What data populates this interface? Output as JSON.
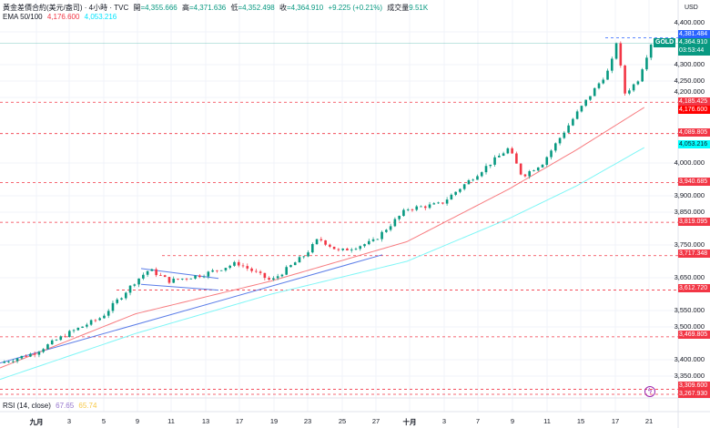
{
  "header": {
    "title": "黃金差價合約(美元/盎司) · 4小時 · TVC",
    "open_label": "開",
    "open": "=4,355.666",
    "high_label": "高",
    "high": "=4,371.636",
    "low_label": "低",
    "low": "=4,352.498",
    "close_label": "收",
    "close": "=4,364.910",
    "change": "+9.225 (+0.21%)",
    "volume_label": "成交量",
    "volume": "9.51K"
  },
  "ema": {
    "label": "EMA 50/100",
    "ema50": "4,176.600",
    "ema100": "4,053.216"
  },
  "rsi": {
    "label": "RSI (14, close)",
    "value1": "67.65",
    "value2": "65.74"
  },
  "price_axis": {
    "currency": "USD",
    "ticks": [
      "4,400.000",
      "4,300.000",
      "4,250.000",
      "4,200.000",
      "4,000.000",
      "3,900.000",
      "3,850.000",
      "3,750.000",
      "3,650.000",
      "3,550.000",
      "3,500.000",
      "3,400.000",
      "3,350.000"
    ],
    "tick_values": [
      4400,
      4300,
      4250,
      4200,
      4000,
      3900,
      3850,
      3750,
      3650,
      3550,
      3500,
      3400,
      3350
    ]
  },
  "symbol_tag": "GOLD",
  "current": {
    "price": "4,364.910",
    "countdown": "03:53:44",
    "high_marker": "4,381.484"
  },
  "price_labels": [
    {
      "text": "4,185.425",
      "value": 4185.425,
      "color": "#f23645"
    },
    {
      "text": "4,176.600",
      "value": 4176.6,
      "color": "#ff0000"
    },
    {
      "text": "4,089.805",
      "value": 4089.805,
      "color": "#f23645"
    },
    {
      "text": "4,053.216",
      "value": 4053.216,
      "color": "#00ffff"
    },
    {
      "text": "3,940.685",
      "value": 3940.685,
      "color": "#f23645"
    },
    {
      "text": "3,819.095",
      "value": 3819.095,
      "color": "#f23645"
    },
    {
      "text": "3,717.348",
      "value": 3717.348,
      "color": "#f23645"
    },
    {
      "text": "3,612.720",
      "value": 3612.72,
      "color": "#f23645"
    },
    {
      "text": "3,469.805",
      "value": 3469.805,
      "color": "#f23645"
    },
    {
      "text": "3,309.600",
      "value": 3309.6,
      "color": "#f23645"
    },
    {
      "text": "3,267.930",
      "value": 3267.93,
      "color": "#f23645"
    }
  ],
  "dates": [
    "九月",
    "3",
    "5",
    "9",
    "11",
    "13",
    "17",
    "19",
    "23",
    "25",
    "27",
    "十月",
    "3",
    "7",
    "9",
    "11",
    "15",
    "17",
    "21"
  ],
  "colors": {
    "up": "#089981",
    "down": "#f23645",
    "ema50": "#f77c80",
    "ema100": "#7ff6f6",
    "trend": "#5b7de8"
  },
  "chart_data": {
    "type": "candlestick",
    "price_path": [
      [
        0,
        3390
      ],
      [
        0.05,
        3420
      ],
      [
        0.1,
        3480
      ],
      [
        0.15,
        3530
      ],
      [
        0.2,
        3640
      ],
      [
        0.22,
        3675
      ],
      [
        0.25,
        3640
      ],
      [
        0.3,
        3660
      ],
      [
        0.35,
        3695
      ],
      [
        0.4,
        3640
      ],
      [
        0.45,
        3720
      ],
      [
        0.47,
        3770
      ],
      [
        0.5,
        3730
      ],
      [
        0.55,
        3760
      ],
      [
        0.6,
        3860
      ],
      [
        0.65,
        3875
      ],
      [
        0.7,
        3960
      ],
      [
        0.75,
        4045
      ],
      [
        0.77,
        3960
      ],
      [
        0.8,
        4000
      ],
      [
        0.85,
        4150
      ],
      [
        0.9,
        4290
      ],
      [
        0.91,
        4380
      ],
      [
        0.92,
        4210
      ],
      [
        0.94,
        4250
      ],
      [
        0.96,
        4365
      ]
    ],
    "ema50_path": [
      [
        0,
        3375
      ],
      [
        0.2,
        3540
      ],
      [
        0.4,
        3640
      ],
      [
        0.6,
        3760
      ],
      [
        0.75,
        3920
      ],
      [
        0.85,
        4040
      ],
      [
        0.955,
        4176
      ]
    ],
    "ema100_path": [
      [
        0,
        3340
      ],
      [
        0.2,
        3480
      ],
      [
        0.4,
        3600
      ],
      [
        0.6,
        3700
      ],
      [
        0.75,
        3830
      ],
      [
        0.85,
        3930
      ],
      [
        0.955,
        4053
      ]
    ]
  }
}
